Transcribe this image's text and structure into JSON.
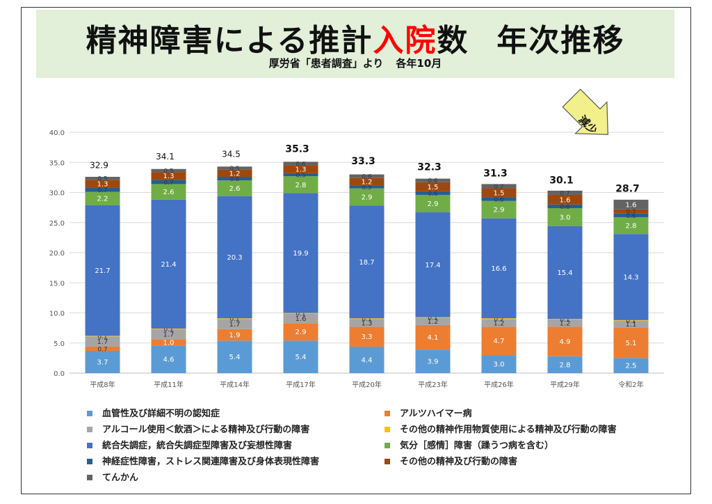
{
  "title": {
    "part1": "精神障害による推計",
    "highlight": "入院",
    "part2": "数",
    "part3": "年次推移"
  },
  "subtitle": {
    "source": "厚労省「患者調査」より",
    "period": "各年10月"
  },
  "annotation": {
    "text": "減少",
    "color": "#f2f08a"
  },
  "chart_data": {
    "type": "bar",
    "stacked": true,
    "categories": [
      "平成8年",
      "平成11年",
      "平成14年",
      "平成17年",
      "平成20年",
      "平成23年",
      "平成26年",
      "平成29年",
      "令和2年"
    ],
    "ylim": [
      0,
      40
    ],
    "yticks": [
      "0.0",
      "5.0",
      "10.0",
      "15.0",
      "20.0",
      "25.0",
      "30.0",
      "35.0",
      "40.0"
    ],
    "totals": [
      "32.9",
      "34.1",
      "34.5",
      "35.3",
      "33.3",
      "32.3",
      "31.3",
      "30.1",
      "28.7"
    ],
    "grid": true,
    "legend_position": "bottom",
    "series": [
      {
        "name": "血管性及び詳細不明の認知症",
        "color": "#5b9bd5",
        "values": [
          3.7,
          4.6,
          5.4,
          5.4,
          4.4,
          3.9,
          3.0,
          2.8,
          2.5
        ],
        "labels": [
          "3.7",
          "4.6",
          "5.4",
          "5.4",
          "4.4",
          "3.9",
          "3.0",
          "2.8",
          "2.5"
        ]
      },
      {
        "name": "アルツハイマー病",
        "color": "#ed7d31",
        "values": [
          0.7,
          1.0,
          1.9,
          2.9,
          3.3,
          4.1,
          4.7,
          4.9,
          5.1
        ],
        "labels": [
          "0.7",
          "1.0",
          "1.9",
          "2.9",
          "3.3",
          "4.1",
          "4.7",
          "4.9",
          "5.1"
        ]
      },
      {
        "name": "アルコール使用＜飲酒＞による精神及び行動の障害",
        "color": "#a5a5a5",
        "values": [
          1.7,
          1.7,
          1.7,
          1.6,
          1.3,
          1.2,
          1.2,
          1.2,
          1.1
        ],
        "labels": [
          "1.7",
          "1.7",
          "1.7",
          "1.6",
          "1.3",
          "1.2",
          "1.2",
          "1.2",
          "1.1"
        ]
      },
      {
        "name": "その他の精神作用物質使用による精神及び行動の障害",
        "color": "#ffc000",
        "values": [
          0.1,
          0.1,
          0.1,
          0.1,
          0.1,
          0.1,
          0.2,
          0.1,
          0.1
        ],
        "labels": [
          "0.1",
          "0.1",
          "0.1",
          "0.1",
          "0.1",
          "0.1",
          "0.2",
          "0.1",
          "0.1"
        ]
      },
      {
        "name": "統合失調症，統合失調症型障害及び妄想性障害",
        "color": "#4472c4",
        "values": [
          21.7,
          21.4,
          20.3,
          19.9,
          18.7,
          17.4,
          16.6,
          15.4,
          14.3
        ],
        "labels": [
          "21.7",
          "21.4",
          "20.3",
          "19.9",
          "18.7",
          "17.4",
          "16.6",
          "15.4",
          "14.3"
        ]
      },
      {
        "name": "気分［感情］障害（躁うつ病を含む）",
        "color": "#70ad47",
        "values": [
          2.2,
          2.6,
          2.6,
          2.8,
          2.9,
          2.9,
          2.9,
          3.0,
          2.8
        ],
        "labels": [
          "2.2",
          "2.6",
          "2.6",
          "2.8",
          "2.9",
          "2.9",
          "2.9",
          "3.0",
          "2.8"
        ]
      },
      {
        "name": "神経症性障害，ストレス関連障害及び身体表現性障害",
        "color": "#255e91",
        "values": [
          0.7,
          0.7,
          0.6,
          0.5,
          0.5,
          0.6,
          0.6,
          0.6,
          0.6
        ],
        "labels": [
          "0.7",
          "0.7",
          "0.6",
          "0.5",
          "0.5",
          "0.6",
          "0.6",
          "0.6",
          "0.6"
        ]
      },
      {
        "name": "その他の精神及び行動の障害",
        "color": "#9e480e",
        "values": [
          1.3,
          1.3,
          1.2,
          1.3,
          1.2,
          1.5,
          1.5,
          1.6,
          0.7
        ],
        "labels": [
          "1.3",
          "1.3",
          "1.2",
          "1.3",
          "1.2",
          "1.5",
          "1.5",
          "1.6",
          "0.7"
        ]
      },
      {
        "name": "てんかん",
        "color": "#636363",
        "values": [
          0.5,
          0.5,
          0.5,
          0.6,
          0.6,
          0.6,
          0.7,
          0.7,
          1.6
        ],
        "labels": [
          "0.5",
          "0.5",
          "0.5",
          "0.6",
          "0.6",
          "0.6",
          "0.7",
          "0.7",
          "1.6"
        ]
      }
    ]
  }
}
